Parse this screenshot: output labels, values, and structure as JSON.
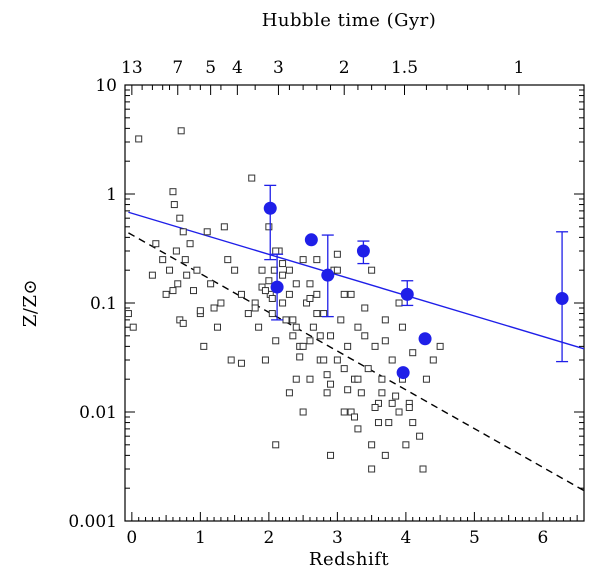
{
  "chart_data": {
    "type": "scatter",
    "title": "",
    "top_axis": {
      "label": "Hubble time (Gyr)",
      "ticks": [
        {
          "label": "13",
          "z": 0.0
        },
        {
          "label": "7",
          "z": 0.67
        },
        {
          "label": "5",
          "z": 1.15
        },
        {
          "label": "4",
          "z": 1.54
        },
        {
          "label": "3",
          "z": 2.14
        },
        {
          "label": "2",
          "z": 3.1
        },
        {
          "label": "1.5",
          "z": 3.98
        },
        {
          "label": "1",
          "z": 5.65
        }
      ]
    },
    "xlabel": "Redshift",
    "ylabel": "Z/Z⊙",
    "xlim": [
      -0.1,
      6.6
    ],
    "ylim": [
      0.001,
      10
    ],
    "yscale": "log",
    "x_ticks": [
      {
        "label": "0",
        "value": 0
      },
      {
        "label": "1",
        "value": 1
      },
      {
        "label": "2",
        "value": 2
      },
      {
        "label": "3",
        "value": 3
      },
      {
        "label": "4",
        "value": 4
      },
      {
        "label": "5",
        "value": 5
      },
      {
        "label": "6",
        "value": 6
      }
    ],
    "y_ticks": [
      {
        "label": "0.001",
        "value": 0.001
      },
      {
        "label": "0.01",
        "value": 0.01
      },
      {
        "label": "0.1",
        "value": 0.1
      },
      {
        "label": "1",
        "value": 1
      },
      {
        "label": "10",
        "value": 10
      }
    ],
    "series": [
      {
        "marker": "open-square",
        "color": "#000000",
        "x": [
          0.1,
          -0.05,
          0.02,
          0.35,
          0.45,
          0.55,
          0.6,
          0.62,
          0.65,
          0.67,
          0.7,
          0.72,
          0.75,
          0.78,
          0.8,
          0.85,
          0.9,
          0.95,
          1.0,
          1.05,
          1.1,
          1.15,
          1.2,
          1.25,
          1.3,
          1.35,
          1.4,
          1.45,
          1.5,
          1.6,
          1.7,
          1.75,
          1.8,
          1.85,
          1.9,
          1.95,
          2.0,
          2.02,
          2.05,
          2.08,
          2.1,
          2.15,
          2.2,
          2.25,
          2.3,
          2.35,
          2.4,
          2.45,
          2.5,
          2.55,
          2.6,
          2.65,
          2.7,
          2.75,
          2.8,
          2.85,
          2.9,
          2.95,
          3.0,
          3.05,
          3.1,
          3.15,
          3.2,
          3.25,
          3.3,
          3.35,
          3.4,
          3.45,
          3.5,
          3.55,
          3.6,
          3.65,
          3.7,
          3.75,
          3.8,
          3.85,
          3.9,
          3.95,
          4.0,
          4.05,
          4.1,
          4.2,
          4.3,
          4.4,
          4.5,
          2.1,
          2.3,
          2.5,
          2.7,
          2.9,
          3.1,
          3.3,
          3.5,
          3.7,
          3.9,
          2.2,
          2.4,
          2.6,
          2.8,
          3.0,
          3.2,
          3.4,
          3.6,
          3.8,
          2.0,
          2.6,
          3.0,
          1.8,
          1.9,
          2.3,
          2.7,
          3.3,
          3.7,
          4.1,
          1.6,
          2.1,
          2.5,
          2.9,
          3.1,
          3.5,
          4.25,
          2.05,
          2.45,
          2.85,
          3.25,
          3.65,
          4.05,
          1.95,
          2.35,
          2.75,
          3.15,
          3.55,
          3.95,
          0.7,
          0.5,
          0.3,
          0.75,
          0.6,
          1.0,
          2.2,
          2.4,
          2.6
        ],
        "y": [
          3.2,
          0.08,
          0.06,
          0.35,
          0.25,
          0.2,
          1.05,
          0.8,
          0.3,
          0.15,
          0.6,
          3.8,
          0.45,
          0.25,
          0.18,
          0.35,
          0.13,
          0.2,
          0.08,
          0.04,
          0.45,
          0.15,
          0.09,
          0.06,
          0.1,
          0.5,
          0.25,
          0.03,
          0.2,
          0.12,
          0.08,
          1.4,
          0.1,
          0.06,
          0.2,
          0.03,
          0.5,
          0.12,
          0.08,
          0.2,
          0.045,
          0.3,
          0.1,
          0.07,
          0.2,
          0.05,
          0.15,
          0.04,
          0.25,
          0.1,
          0.02,
          0.06,
          0.12,
          0.03,
          0.08,
          0.015,
          0.05,
          0.2,
          0.03,
          0.07,
          0.01,
          0.04,
          0.12,
          0.02,
          0.06,
          0.015,
          0.09,
          0.025,
          0.005,
          0.04,
          0.012,
          0.02,
          0.07,
          0.008,
          0.03,
          0.014,
          0.01,
          0.02,
          0.005,
          0.012,
          0.008,
          0.006,
          0.02,
          0.03,
          0.04,
          0.3,
          0.12,
          0.04,
          0.25,
          0.018,
          0.12,
          0.007,
          0.2,
          0.004,
          0.1,
          0.18,
          0.06,
          0.15,
          0.03,
          0.2,
          0.01,
          0.05,
          0.008,
          0.012,
          0.16,
          0.045,
          0.28,
          0.09,
          0.14,
          0.015,
          0.08,
          0.02,
          0.045,
          0.035,
          0.028,
          0.005,
          0.01,
          0.004,
          0.025,
          0.003,
          0.003,
          0.11,
          0.032,
          0.022,
          0.009,
          0.015,
          0.011,
          0.13,
          0.07,
          0.05,
          0.016,
          0.011,
          0.06,
          0.07,
          0.12,
          0.18,
          0.065,
          0.13,
          0.085,
          0.23,
          0.02,
          0.11
        ]
      },
      {
        "marker": "filled-circle",
        "color": "#1f1fe8",
        "x": [
          2.02,
          2.12,
          2.62,
          2.86,
          3.38,
          4.02,
          4.28,
          3.96,
          6.28
        ],
        "y": [
          0.74,
          0.14,
          0.38,
          0.18,
          0.3,
          0.12,
          0.047,
          0.023,
          0.11
        ],
        "yerr_low": [
          0.25,
          0.07,
          null,
          0.075,
          0.23,
          0.095,
          null,
          null,
          0.029
        ],
        "yerr_high": [
          1.2,
          0.28,
          null,
          0.42,
          0.37,
          0.16,
          null,
          null,
          0.45
        ]
      }
    ],
    "lines": [
      {
        "style": "solid",
        "color": "#1f1fe8",
        "points": [
          [
            -0.05,
            0.68
          ],
          [
            6.6,
            0.038
          ]
        ]
      },
      {
        "style": "dashed",
        "color": "#000000",
        "points": [
          [
            -0.05,
            0.44
          ],
          [
            6.6,
            0.0019
          ]
        ]
      }
    ]
  }
}
